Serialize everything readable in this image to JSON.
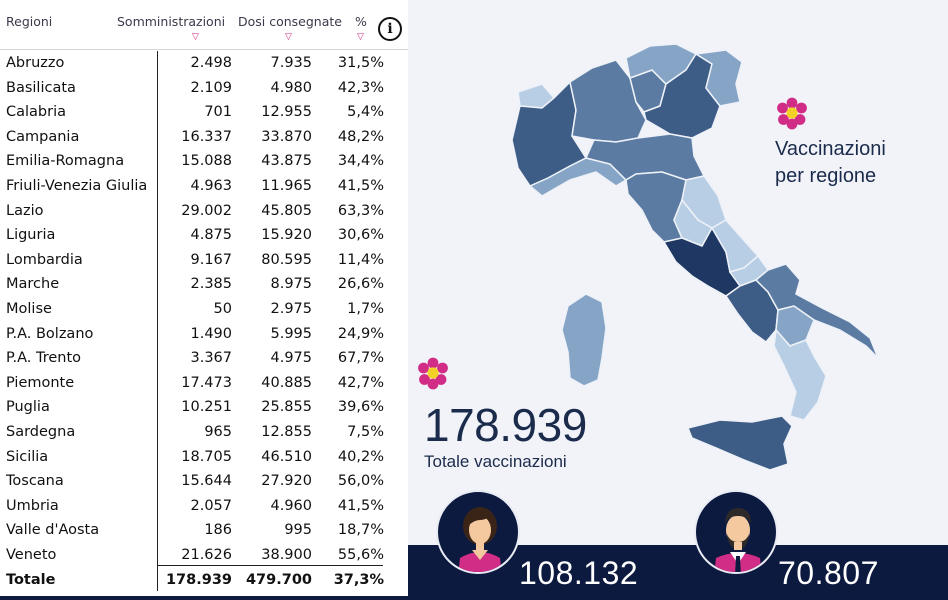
{
  "table": {
    "headers": {
      "region": "Regioni",
      "administrations": "Somministrazioni",
      "doses": "Dosi consegnate",
      "percent": "%"
    },
    "info_label": "i",
    "rows": [
      {
        "region": "Abruzzo",
        "administrations": "2.498",
        "doses": "7.935",
        "percent": "31,5%"
      },
      {
        "region": "Basilicata",
        "administrations": "2.109",
        "doses": "4.980",
        "percent": "42,3%"
      },
      {
        "region": "Calabria",
        "administrations": "701",
        "doses": "12.955",
        "percent": "5,4%"
      },
      {
        "region": "Campania",
        "administrations": "16.337",
        "doses": "33.870",
        "percent": "48,2%"
      },
      {
        "region": "Emilia-Romagna",
        "administrations": "15.088",
        "doses": "43.875",
        "percent": "34,4%"
      },
      {
        "region": "Friuli-Venezia Giulia",
        "administrations": "4.963",
        "doses": "11.965",
        "percent": "41,5%"
      },
      {
        "region": "Lazio",
        "administrations": "29.002",
        "doses": "45.805",
        "percent": "63,3%"
      },
      {
        "region": "Liguria",
        "administrations": "4.875",
        "doses": "15.920",
        "percent": "30,6%"
      },
      {
        "region": "Lombardia",
        "administrations": "9.167",
        "doses": "80.595",
        "percent": "11,4%"
      },
      {
        "region": "Marche",
        "administrations": "2.385",
        "doses": "8.975",
        "percent": "26,6%"
      },
      {
        "region": "Molise",
        "administrations": "50",
        "doses": "2.975",
        "percent": "1,7%"
      },
      {
        "region": "P.A. Bolzano",
        "administrations": "1.490",
        "doses": "5.995",
        "percent": "24,9%"
      },
      {
        "region": "P.A. Trento",
        "administrations": "3.367",
        "doses": "4.975",
        "percent": "67,7%"
      },
      {
        "region": "Piemonte",
        "administrations": "17.473",
        "doses": "40.885",
        "percent": "42,7%"
      },
      {
        "region": "Puglia",
        "administrations": "10.251",
        "doses": "25.855",
        "percent": "39,6%"
      },
      {
        "region": "Sardegna",
        "administrations": "965",
        "doses": "12.855",
        "percent": "7,5%"
      },
      {
        "region": "Sicilia",
        "administrations": "18.705",
        "doses": "46.510",
        "percent": "40,2%"
      },
      {
        "region": "Toscana",
        "administrations": "15.644",
        "doses": "27.920",
        "percent": "56,0%"
      },
      {
        "region": "Umbria",
        "administrations": "2.057",
        "doses": "4.960",
        "percent": "41,5%"
      },
      {
        "region": "Valle d'Aosta",
        "administrations": "186",
        "doses": "995",
        "percent": "18,7%"
      },
      {
        "region": "Veneto",
        "administrations": "21.626",
        "doses": "38.900",
        "percent": "55,6%"
      }
    ],
    "total": {
      "region": "Totale",
      "administrations": "178.939",
      "doses": "479.700",
      "percent": "37,3%"
    }
  },
  "map": {
    "title_line1": "Vaccinazioni",
    "title_line2": "per regione",
    "icon": "flower-icon",
    "shade_colors": [
      "#1e3763",
      "#3d5c86",
      "#5b7ba3",
      "#86a4c6",
      "#b8cee5"
    ]
  },
  "summary": {
    "total_value": "178.939",
    "total_label": "Totale vaccinazioni",
    "women_count": "108.132",
    "men_count": "70.807"
  },
  "colors": {
    "accent": "#d12d86",
    "navy": "#0d1a3f",
    "background": "#f1f3f9"
  }
}
